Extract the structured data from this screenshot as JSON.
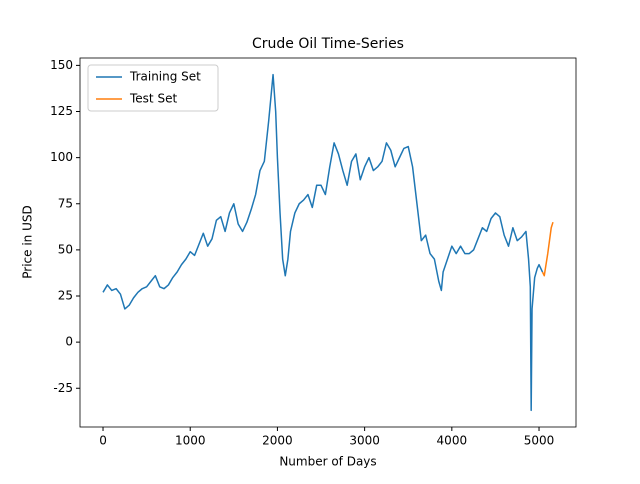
{
  "chart_data": {
    "type": "line",
    "title": "Crude Oil Time-Series",
    "x_label": "Number of Days",
    "y_label": "Price in USD",
    "xlim": [
      -264,
      5424
    ],
    "ylim": [
      -46,
      154
    ],
    "xticks": [
      0,
      1000,
      2000,
      3000,
      4000,
      5000
    ],
    "yticks": [
      -25,
      0,
      25,
      50,
      75,
      100,
      125,
      150
    ],
    "legend": "upper left",
    "grid": false,
    "series": [
      {
        "name": "Training Set",
        "color": "#1f77b4",
        "x": [
          0,
          50,
          100,
          150,
          200,
          250,
          300,
          350,
          400,
          450,
          500,
          550,
          600,
          650,
          700,
          750,
          800,
          850,
          900,
          950,
          1000,
          1050,
          1100,
          1150,
          1200,
          1250,
          1300,
          1350,
          1400,
          1450,
          1500,
          1550,
          1600,
          1650,
          1700,
          1750,
          1800,
          1850,
          1900,
          1930,
          1950,
          1980,
          2000,
          2030,
          2060,
          2090,
          2120,
          2150,
          2200,
          2250,
          2300,
          2350,
          2400,
          2450,
          2500,
          2550,
          2600,
          2650,
          2700,
          2750,
          2800,
          2850,
          2900,
          2950,
          3000,
          3050,
          3100,
          3150,
          3200,
          3250,
          3300,
          3350,
          3400,
          3450,
          3500,
          3550,
          3600,
          3650,
          3700,
          3750,
          3800,
          3850,
          3880,
          3900,
          3950,
          4000,
          4050,
          4100,
          4150,
          4200,
          4250,
          4300,
          4350,
          4400,
          4450,
          4500,
          4550,
          4600,
          4650,
          4700,
          4750,
          4800,
          4850,
          4880,
          4900,
          4910,
          4920,
          4950,
          4980,
          5000,
          5040
        ],
        "values": [
          27,
          31,
          28,
          29,
          26,
          18,
          20,
          24,
          27,
          29,
          30,
          33,
          36,
          30,
          29,
          31,
          35,
          38,
          42,
          45,
          49,
          47,
          53,
          59,
          52,
          56,
          66,
          68,
          60,
          70,
          75,
          64,
          60,
          65,
          72,
          80,
          93,
          98,
          120,
          135,
          145,
          125,
          100,
          70,
          45,
          36,
          45,
          60,
          70,
          75,
          77,
          80,
          73,
          85,
          85,
          80,
          95,
          108,
          102,
          93,
          85,
          98,
          102,
          88,
          95,
          100,
          93,
          95,
          98,
          108,
          104,
          95,
          100,
          105,
          106,
          95,
          75,
          55,
          58,
          48,
          45,
          33,
          28,
          38,
          45,
          52,
          48,
          52,
          48,
          48,
          50,
          56,
          62,
          60,
          67,
          70,
          68,
          58,
          52,
          62,
          55,
          57,
          60,
          45,
          30,
          -37,
          18,
          35,
          40,
          42,
          38
        ]
      },
      {
        "name": "Test Set",
        "color": "#ff7f0e",
        "x": [
          5040,
          5060,
          5080,
          5100,
          5120,
          5140,
          5160
        ],
        "values": [
          38,
          36,
          42,
          48,
          55,
          62,
          65
        ]
      }
    ]
  }
}
